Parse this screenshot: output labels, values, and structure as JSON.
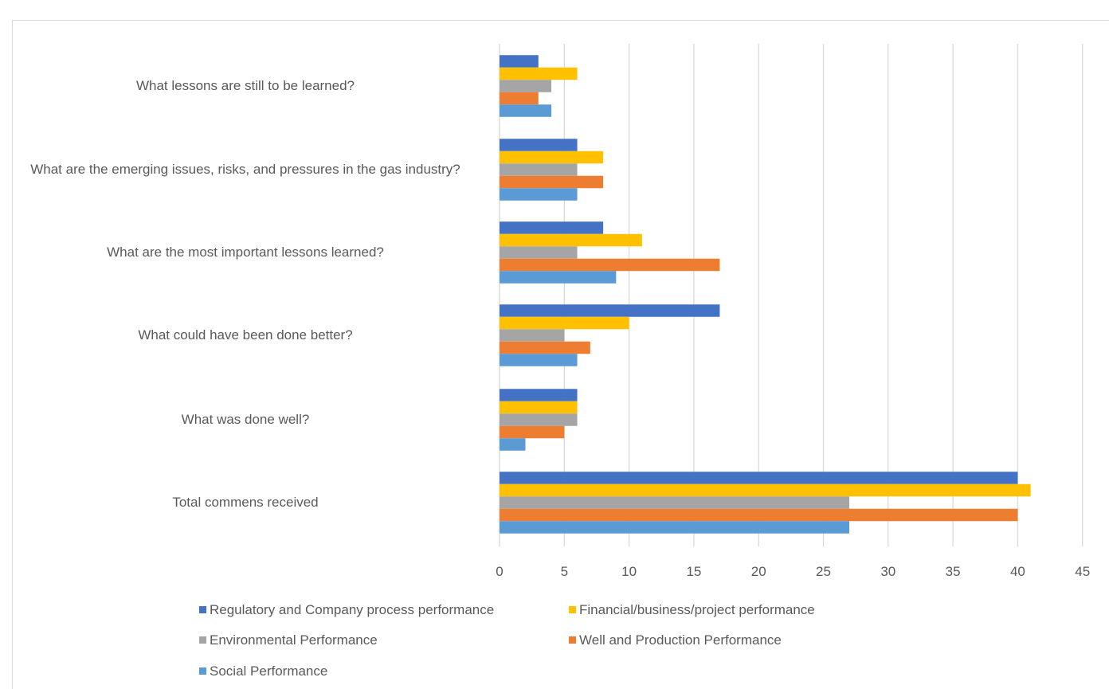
{
  "chart_data": {
    "type": "bar",
    "orientation": "horizontal",
    "categories": [
      "What lessons are still to be learned?",
      "What are the emerging issues, risks, and pressures in the gas industry?",
      "What are the most important lessons learned?",
      "What could have been done better?",
      "What was done well?",
      "Total commens received"
    ],
    "series": [
      {
        "name": "Regulatory and Company process performance",
        "color": "#4472C4",
        "values": [
          3,
          6,
          8,
          17,
          6,
          40
        ]
      },
      {
        "name": "Financial/business/project performance",
        "color": "#FFC000",
        "values": [
          6,
          8,
          11,
          10,
          6,
          41
        ]
      },
      {
        "name": "Environmental Performance",
        "color": "#A5A5A5",
        "values": [
          4,
          6,
          6,
          5,
          6,
          27
        ]
      },
      {
        "name": "Well and Production Performance",
        "color": "#ED7D31",
        "values": [
          3,
          8,
          17,
          7,
          5,
          40
        ]
      },
      {
        "name": "Social Performance",
        "color": "#5B9BD5",
        "values": [
          4,
          6,
          9,
          6,
          2,
          27
        ]
      }
    ],
    "xlim": [
      0,
      45
    ],
    "xticks": [
      "0",
      "5",
      "10",
      "15",
      "20",
      "25",
      "30",
      "35",
      "40",
      "45"
    ],
    "grid": true,
    "legend_position": "bottom"
  }
}
